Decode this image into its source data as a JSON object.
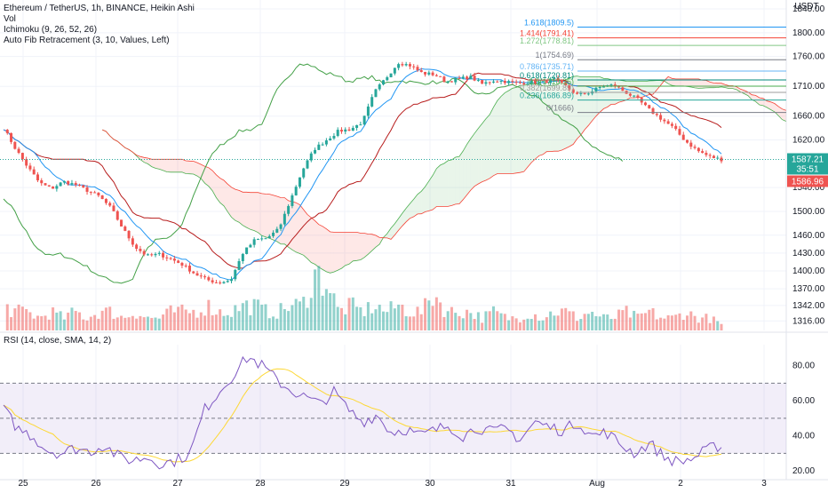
{
  "header": {
    "symbol_line": "Ethereum / TetherUS, 1h, BINANCE, Heikin Ashi",
    "indicators": [
      "Vol",
      "Ichimoku (9, 26, 52, 26)",
      "Auto Fib Retracement (3, 10, Values, Left)"
    ]
  },
  "rsi_legend": "RSI (14, close, SMA, 14, 2)",
  "colors": {
    "bull": "#26a69a",
    "bear": "#ef5350",
    "tenkan": "#2196f3",
    "kijun": "#b71c1c",
    "lagging": "#43a047",
    "cloud_green": "#4caf50",
    "cloud_red": "#f44336",
    "rsi": "#7e57c2",
    "rsi_ma": "#fdd835",
    "price_line": "#26a69a"
  },
  "chart_data": [
    {
      "type": "candlestick",
      "title": "Ethereum / TetherUS, 1h, BINANCE, Heikin Ashi",
      "currency": "USDT",
      "ylim": [
        1300,
        1855
      ],
      "y_ticks": [
        "1840.00",
        "1800.00",
        "1760.00",
        "1710.00",
        "1660.00",
        "1620.00",
        "1540.00",
        "1500.00",
        "1460.00",
        "1430.00",
        "1400.00",
        "1370.00",
        "1342.00",
        "1316.00"
      ],
      "x_ticks": [
        "25",
        "26",
        "27",
        "28",
        "29",
        "30",
        "31",
        "Aug",
        "2",
        "3"
      ],
      "price_sequence": [
        1640,
        1605,
        1575,
        1548,
        1538,
        1550,
        1545,
        1535,
        1525,
        1505,
        1470,
        1440,
        1425,
        1428,
        1420,
        1410,
        1395,
        1385,
        1380,
        1385,
        1430,
        1452,
        1455,
        1470,
        1520,
        1570,
        1605,
        1620,
        1635,
        1638,
        1650,
        1700,
        1725,
        1750,
        1745,
        1732,
        1730,
        1718,
        1722,
        1726,
        1714,
        1720,
        1718,
        1715,
        1717,
        1716,
        1722,
        1710,
        1695,
        1700,
        1710,
        1712,
        1700,
        1688,
        1670,
        1655,
        1640,
        1618,
        1602,
        1592,
        1587
      ],
      "volume_sequence": [
        4,
        3,
        3,
        2,
        3,
        2,
        3,
        2,
        3,
        3,
        2,
        3,
        2,
        2,
        3,
        3,
        3,
        4,
        3,
        3,
        4,
        4,
        3,
        3,
        4,
        4,
        9,
        8,
        3,
        4,
        3,
        4,
        3,
        4,
        3,
        3,
        6,
        3,
        3,
        3,
        2,
        3,
        2,
        2,
        3,
        2,
        3,
        3,
        2,
        3,
        2,
        2,
        3,
        2,
        3,
        2,
        2,
        3,
        2,
        2,
        1
      ],
      "rsi_sequence": [
        55,
        44,
        40,
        32,
        30,
        33,
        31,
        35,
        28,
        26,
        28,
        24,
        26,
        30,
        55,
        65,
        75,
        85,
        80,
        72,
        66,
        62,
        58,
        65,
        55,
        48,
        52,
        42,
        44,
        40,
        43,
        46,
        40,
        45,
        42,
        44,
        38,
        48,
        45,
        43,
        48,
        40,
        42,
        35,
        30,
        36,
        28,
        25,
        27,
        32,
        35
      ],
      "current_price_label": "1587.21",
      "countdown_label": "35:51",
      "prev_close_label": "1586.96",
      "fib_levels": [
        {
          "label": "1.618(1809.5)",
          "color": "#2196f3",
          "value": 1809.5
        },
        {
          "label": "1.414(1791.41)",
          "color": "#f44336",
          "value": 1791.41
        },
        {
          "label": "1.272(1778.81)",
          "color": "#81c784",
          "value": 1778.81
        },
        {
          "label": "1(1754.69)",
          "color": "#787b86",
          "value": 1754.69
        },
        {
          "label": "0.786(1735.71)",
          "color": "#64b5f6",
          "value": 1735.71
        },
        {
          "label": "0.618(1720.81)",
          "color": "#00897b",
          "value": 1720.81
        },
        {
          "label": "0.5(1710.35)",
          "color": "#4caf50",
          "value": 1710.35
        },
        {
          "label": "0.382(1699.89)",
          "color": "#9e9e9e",
          "value": 1699.89
        },
        {
          "label": "0.236(1686.89)",
          "color": "#26a69a",
          "value": 1686.89
        },
        {
          "label": "0(1666)",
          "color": "#787b86",
          "value": 1666
        }
      ]
    },
    {
      "type": "line",
      "title": "RSI (14, close, SMA, 14, 2)",
      "ylim": [
        15,
        92
      ],
      "y_ticks": [
        "80.00",
        "60.00",
        "40.00",
        "20.00"
      ],
      "bands": [
        30,
        50,
        70
      ]
    }
  ]
}
